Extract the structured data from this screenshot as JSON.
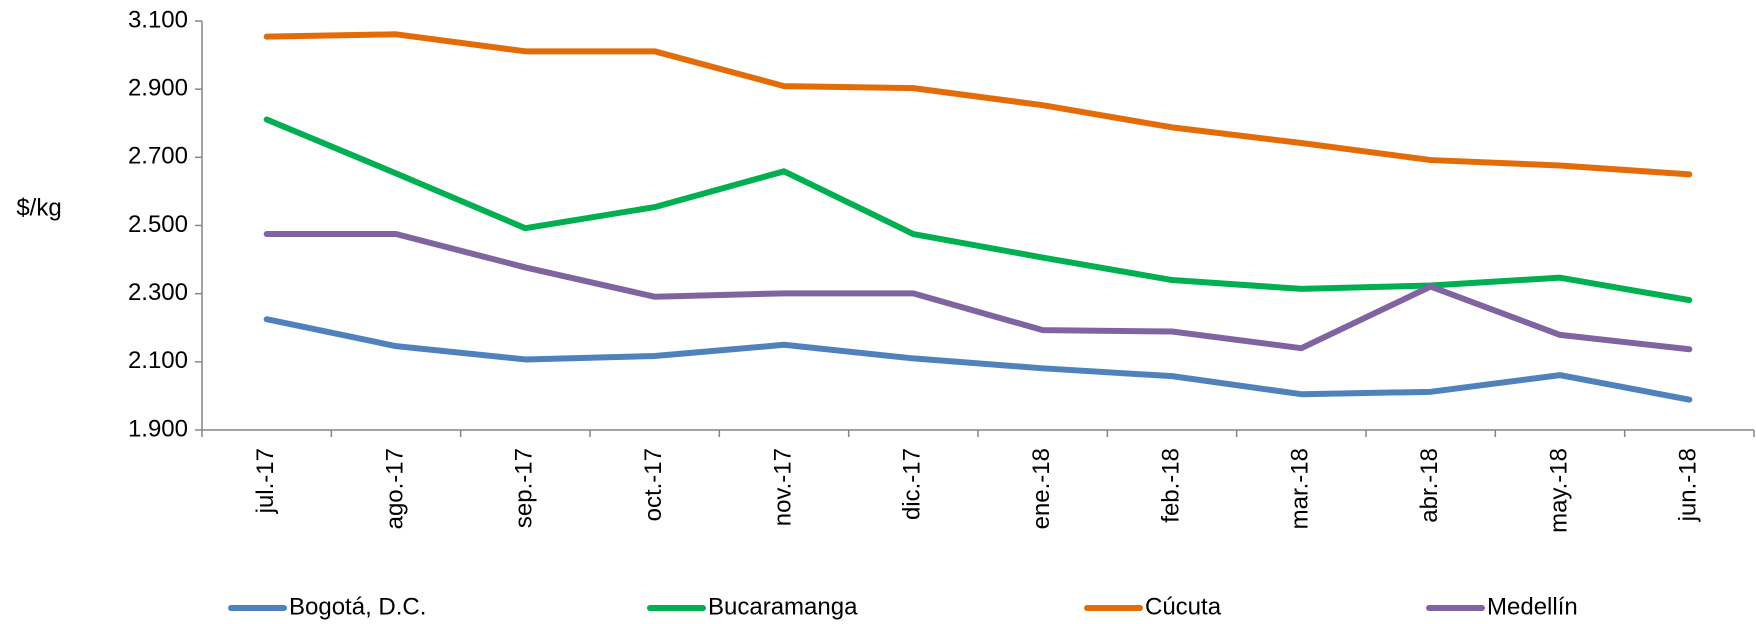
{
  "chart_data": {
    "type": "line",
    "y_label": "$/kg",
    "categories": [
      "jul.-17",
      "ago.-17",
      "sep.-17",
      "oct.-17",
      "nov.-17",
      "dic.-17",
      "ene.-18",
      "feb.-18",
      "mar.-18",
      "abr.-18",
      "may.-18",
      "jun.-18"
    ],
    "series": [
      {
        "name": "Bogotá, D.C.",
        "color": "#4f81bd",
        "values": [
          2225,
          2146,
          2107,
          2117,
          2150,
          2110,
          2081,
          2058,
          2005,
          2012,
          2061,
          1989
        ]
      },
      {
        "name": "Bucaramanga",
        "color": "#00b050",
        "values": [
          2811,
          2653,
          2492,
          2554,
          2659,
          2475,
          2406,
          2340,
          2314,
          2324,
          2347,
          2281
        ]
      },
      {
        "name": "Cúcuta",
        "color": "#e36c09",
        "values": [
          3054,
          3061,
          3011,
          3011,
          2909,
          2903,
          2853,
          2788,
          2742,
          2692,
          2676,
          2650
        ]
      },
      {
        "name": "Medellín",
        "color": "#8064a2",
        "values": [
          2475,
          2475,
          2377,
          2291,
          2301,
          2301,
          2193,
          2189,
          2140,
          2321,
          2179,
          2137
        ]
      }
    ],
    "ylim": [
      1900,
      3100
    ],
    "yticks": [
      {
        "value": 1900,
        "label": "1.900"
      },
      {
        "value": 2100,
        "label": "2.100"
      },
      {
        "value": 2300,
        "label": "2.300"
      },
      {
        "value": 2500,
        "label": "2.500"
      },
      {
        "value": 2700,
        "label": "2.700"
      },
      {
        "value": 2900,
        "label": "2.900"
      },
      {
        "value": 3100,
        "label": "3.100"
      }
    ],
    "legend": "bottom"
  }
}
